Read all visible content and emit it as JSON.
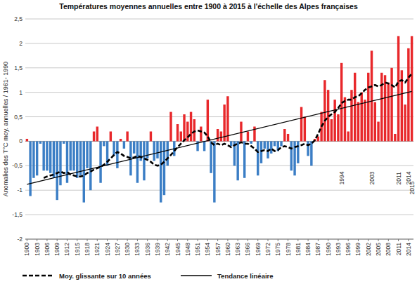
{
  "chart_data": {
    "type": "bar",
    "title": "Températures moyennes annuelles entre 1900 à 2015  à l'échelle des Alpes françaises",
    "y_label": "Anomalies des T°C moy. annuelles / 1961- 1990",
    "x": [
      1900,
      1901,
      1902,
      1903,
      1904,
      1905,
      1906,
      1907,
      1908,
      1909,
      1910,
      1911,
      1912,
      1913,
      1914,
      1915,
      1916,
      1917,
      1918,
      1919,
      1920,
      1921,
      1922,
      1923,
      1924,
      1925,
      1926,
      1927,
      1928,
      1929,
      1930,
      1931,
      1932,
      1933,
      1934,
      1935,
      1936,
      1937,
      1938,
      1939,
      1940,
      1941,
      1942,
      1943,
      1944,
      1945,
      1946,
      1947,
      1948,
      1949,
      1950,
      1951,
      1952,
      1953,
      1954,
      1955,
      1956,
      1957,
      1958,
      1959,
      1960,
      1961,
      1962,
      1963,
      1964,
      1965,
      1966,
      1967,
      1968,
      1969,
      1970,
      1971,
      1972,
      1973,
      1974,
      1975,
      1976,
      1977,
      1978,
      1979,
      1980,
      1981,
      1982,
      1983,
      1984,
      1985,
      1986,
      1987,
      1988,
      1989,
      1990,
      1991,
      1992,
      1993,
      1994,
      1995,
      1996,
      1997,
      1998,
      1999,
      2000,
      2001,
      2002,
      2003,
      2004,
      2005,
      2006,
      2007,
      2008,
      2009,
      2010,
      2011,
      2012,
      2013,
      2014,
      2015
    ],
    "series": [
      {
        "type": "bar",
        "values": [
          0.05,
          -1.12,
          -0.75,
          -0.7,
          -0.05,
          -0.6,
          -0.6,
          -0.65,
          -0.75,
          -1.2,
          -0.9,
          -0.05,
          -0.85,
          -0.6,
          -0.6,
          -0.75,
          -0.7,
          -1.25,
          -0.55,
          -1.0,
          0.2,
          0.3,
          -0.85,
          -0.1,
          -0.5,
          0.2,
          -0.3,
          -0.55,
          0.05,
          -0.15,
          0.2,
          -0.7,
          -0.25,
          -0.85,
          -0.4,
          -0.8,
          -0.35,
          0.2,
          -0.4,
          -0.35,
          -1.25,
          -1.1,
          -0.5,
          0.6,
          -0.3,
          0.35,
          0.2,
          0.55,
          0.4,
          0.6,
          0.45,
          -0.2,
          0.3,
          -0.2,
          0.85,
          -0.65,
          -1.25,
          0.25,
          0.2,
          0.75,
          0.92,
          -0.1,
          -0.5,
          -0.8,
          0.4,
          -0.75,
          0.2,
          -0.05,
          0.3,
          -0.7,
          -0.45,
          -0.15,
          -0.35,
          -0.25,
          -0.1,
          -0.2,
          -0.1,
          0.25,
          0.15,
          -0.6,
          -0.7,
          -0.45,
          0.7,
          0.5,
          -0.3,
          -0.5,
          0.05,
          0.1,
          0.6,
          1.25,
          1.05,
          0.45,
          0.85,
          0.55,
          1.6,
          0.9,
          0.2,
          1.05,
          1.4,
          0.8,
          1.0,
          0.85,
          1.4,
          1.85,
          0.8,
          0.4,
          1.4,
          1.35,
          1.2,
          1.5,
          0.15,
          2.15,
          1.45,
          0.75,
          1.9,
          2.15
        ],
        "colors": [
          "#e8282b",
          "#3b7ec5",
          "#3b7ec5",
          "#3b7ec5",
          "#3b7ec5",
          "#3b7ec5",
          "#3b7ec5",
          "#3b7ec5",
          "#3b7ec5",
          "#3b7ec5",
          "#3b7ec5",
          "#3b7ec5",
          "#3b7ec5",
          "#3b7ec5",
          "#3b7ec5",
          "#3b7ec5",
          "#3b7ec5",
          "#3b7ec5",
          "#3b7ec5",
          "#3b7ec5",
          "#e8282b",
          "#e8282b",
          "#3b7ec5",
          "#3b7ec5",
          "#3b7ec5",
          "#e8282b",
          "#3b7ec5",
          "#3b7ec5",
          "#e8282b",
          "#3b7ec5",
          "#e8282b",
          "#3b7ec5",
          "#3b7ec5",
          "#3b7ec5",
          "#3b7ec5",
          "#3b7ec5",
          "#3b7ec5",
          "#e8282b",
          "#3b7ec5",
          "#3b7ec5",
          "#3b7ec5",
          "#3b7ec5",
          "#3b7ec5",
          "#e8282b",
          "#3b7ec5",
          "#e8282b",
          "#e8282b",
          "#e8282b",
          "#e8282b",
          "#e8282b",
          "#e8282b",
          "#3b7ec5",
          "#e8282b",
          "#3b7ec5",
          "#e8282b",
          "#3b7ec5",
          "#3b7ec5",
          "#e8282b",
          "#e8282b",
          "#e8282b",
          "#e8282b",
          "#3b7ec5",
          "#3b7ec5",
          "#3b7ec5",
          "#e8282b",
          "#3b7ec5",
          "#e8282b",
          "#3b7ec5",
          "#e8282b",
          "#3b7ec5",
          "#3b7ec5",
          "#3b7ec5",
          "#3b7ec5",
          "#3b7ec5",
          "#3b7ec5",
          "#3b7ec5",
          "#3b7ec5",
          "#e8282b",
          "#e8282b",
          "#3b7ec5",
          "#3b7ec5",
          "#3b7ec5",
          "#e8282b",
          "#e8282b",
          "#3b7ec5",
          "#3b7ec5",
          "#e8282b",
          "#e8282b",
          "#e8282b",
          "#e8282b",
          "#e8282b",
          "#e8282b",
          "#e8282b",
          "#e8282b",
          "#e8282b",
          "#e8282b",
          "#e8282b",
          "#e8282b",
          "#e8282b",
          "#e8282b",
          "#e8282b",
          "#e8282b",
          "#e8282b",
          "#e8282b",
          "#e8282b",
          "#e8282b",
          "#e8282b",
          "#e8282b",
          "#e8282b",
          "#e8282b",
          "#e8282b",
          "#e8282b",
          "#e8282b",
          "#e8282b",
          "#e8282b",
          "#e8282b"
        ]
      },
      {
        "name": "Moy. glissante sur 10 années",
        "type": "line",
        "line_style": "dashed",
        "color": "#000000",
        "values": [
          null,
          null,
          null,
          null,
          null,
          -0.75,
          -0.72,
          -0.7,
          -0.68,
          -0.65,
          -0.62,
          -0.65,
          -0.63,
          -0.68,
          -0.7,
          -0.72,
          -0.72,
          -0.7,
          -0.65,
          -0.62,
          -0.58,
          -0.55,
          -0.52,
          -0.48,
          -0.42,
          -0.35,
          -0.28,
          -0.22,
          -0.25,
          -0.3,
          -0.32,
          -0.35,
          -0.33,
          -0.3,
          -0.32,
          -0.35,
          -0.38,
          -0.42,
          -0.48,
          -0.5,
          -0.48,
          -0.42,
          -0.35,
          -0.28,
          -0.2,
          -0.12,
          -0.05,
          0.02,
          0.08,
          0.15,
          0.2,
          0.22,
          0.2,
          0.18,
          0.1,
          -0.02,
          -0.08,
          -0.05,
          -0.08,
          -0.05,
          -0.08,
          -0.12,
          -0.08,
          -0.05,
          -0.02,
          -0.05,
          -0.05,
          -0.1,
          -0.15,
          -0.22,
          -0.2,
          -0.18,
          -0.2,
          -0.15,
          -0.2,
          -0.18,
          -0.12,
          -0.1,
          -0.12,
          -0.15,
          -0.12,
          -0.1,
          -0.08,
          -0.05,
          -0.08,
          -0.05,
          0.02,
          0.15,
          0.3,
          0.42,
          0.5,
          0.55,
          0.6,
          0.68,
          0.78,
          0.82,
          0.85,
          0.85,
          0.9,
          0.92,
          0.98,
          1.05,
          1.1,
          1.12,
          1.15,
          1.12,
          1.15,
          1.2,
          1.18,
          1.15,
          1.1,
          1.22,
          1.25,
          1.2,
          1.3,
          1.38
        ]
      },
      {
        "name": "Tendance linéaire",
        "type": "line",
        "line_style": "solid",
        "color": "#000000",
        "x": [
          1900,
          2015
        ],
        "values": [
          -0.88,
          1.02
        ]
      }
    ],
    "annotations": [
      {
        "text": "1994",
        "x": 1994
      },
      {
        "text": "2003",
        "x": 2003
      },
      {
        "text": "2011",
        "x": 2011
      },
      {
        "text": "2014",
        "x": 2014
      },
      {
        "text": "2015",
        "x": 2015
      }
    ],
    "xlim": [
      1899.5,
      2015.5
    ],
    "xticks": [
      1900,
      1903,
      1906,
      1909,
      1912,
      1915,
      1918,
      1921,
      1924,
      1927,
      1930,
      1933,
      1936,
      1939,
      1942,
      1945,
      1948,
      1951,
      1954,
      1957,
      1960,
      1963,
      1966,
      1969,
      1972,
      1975,
      1978,
      1981,
      1984,
      1987,
      1990,
      1993,
      1996,
      1999,
      2002,
      2005,
      2008,
      2011,
      2014
    ],
    "ylim": [
      -2,
      2.5
    ],
    "yticks": [
      -2,
      {
        "value": -1.5,
        "label": "-1,5"
      },
      -1,
      {
        "value": -0.5,
        "label": "-0,5"
      },
      0,
      {
        "value": 0.5,
        "label": "0,5"
      },
      1,
      {
        "value": 1.5,
        "label": "1,5"
      },
      2,
      {
        "value": 2.5,
        "label": "2,5"
      }
    ],
    "grid": true,
    "legend": "bottom"
  }
}
